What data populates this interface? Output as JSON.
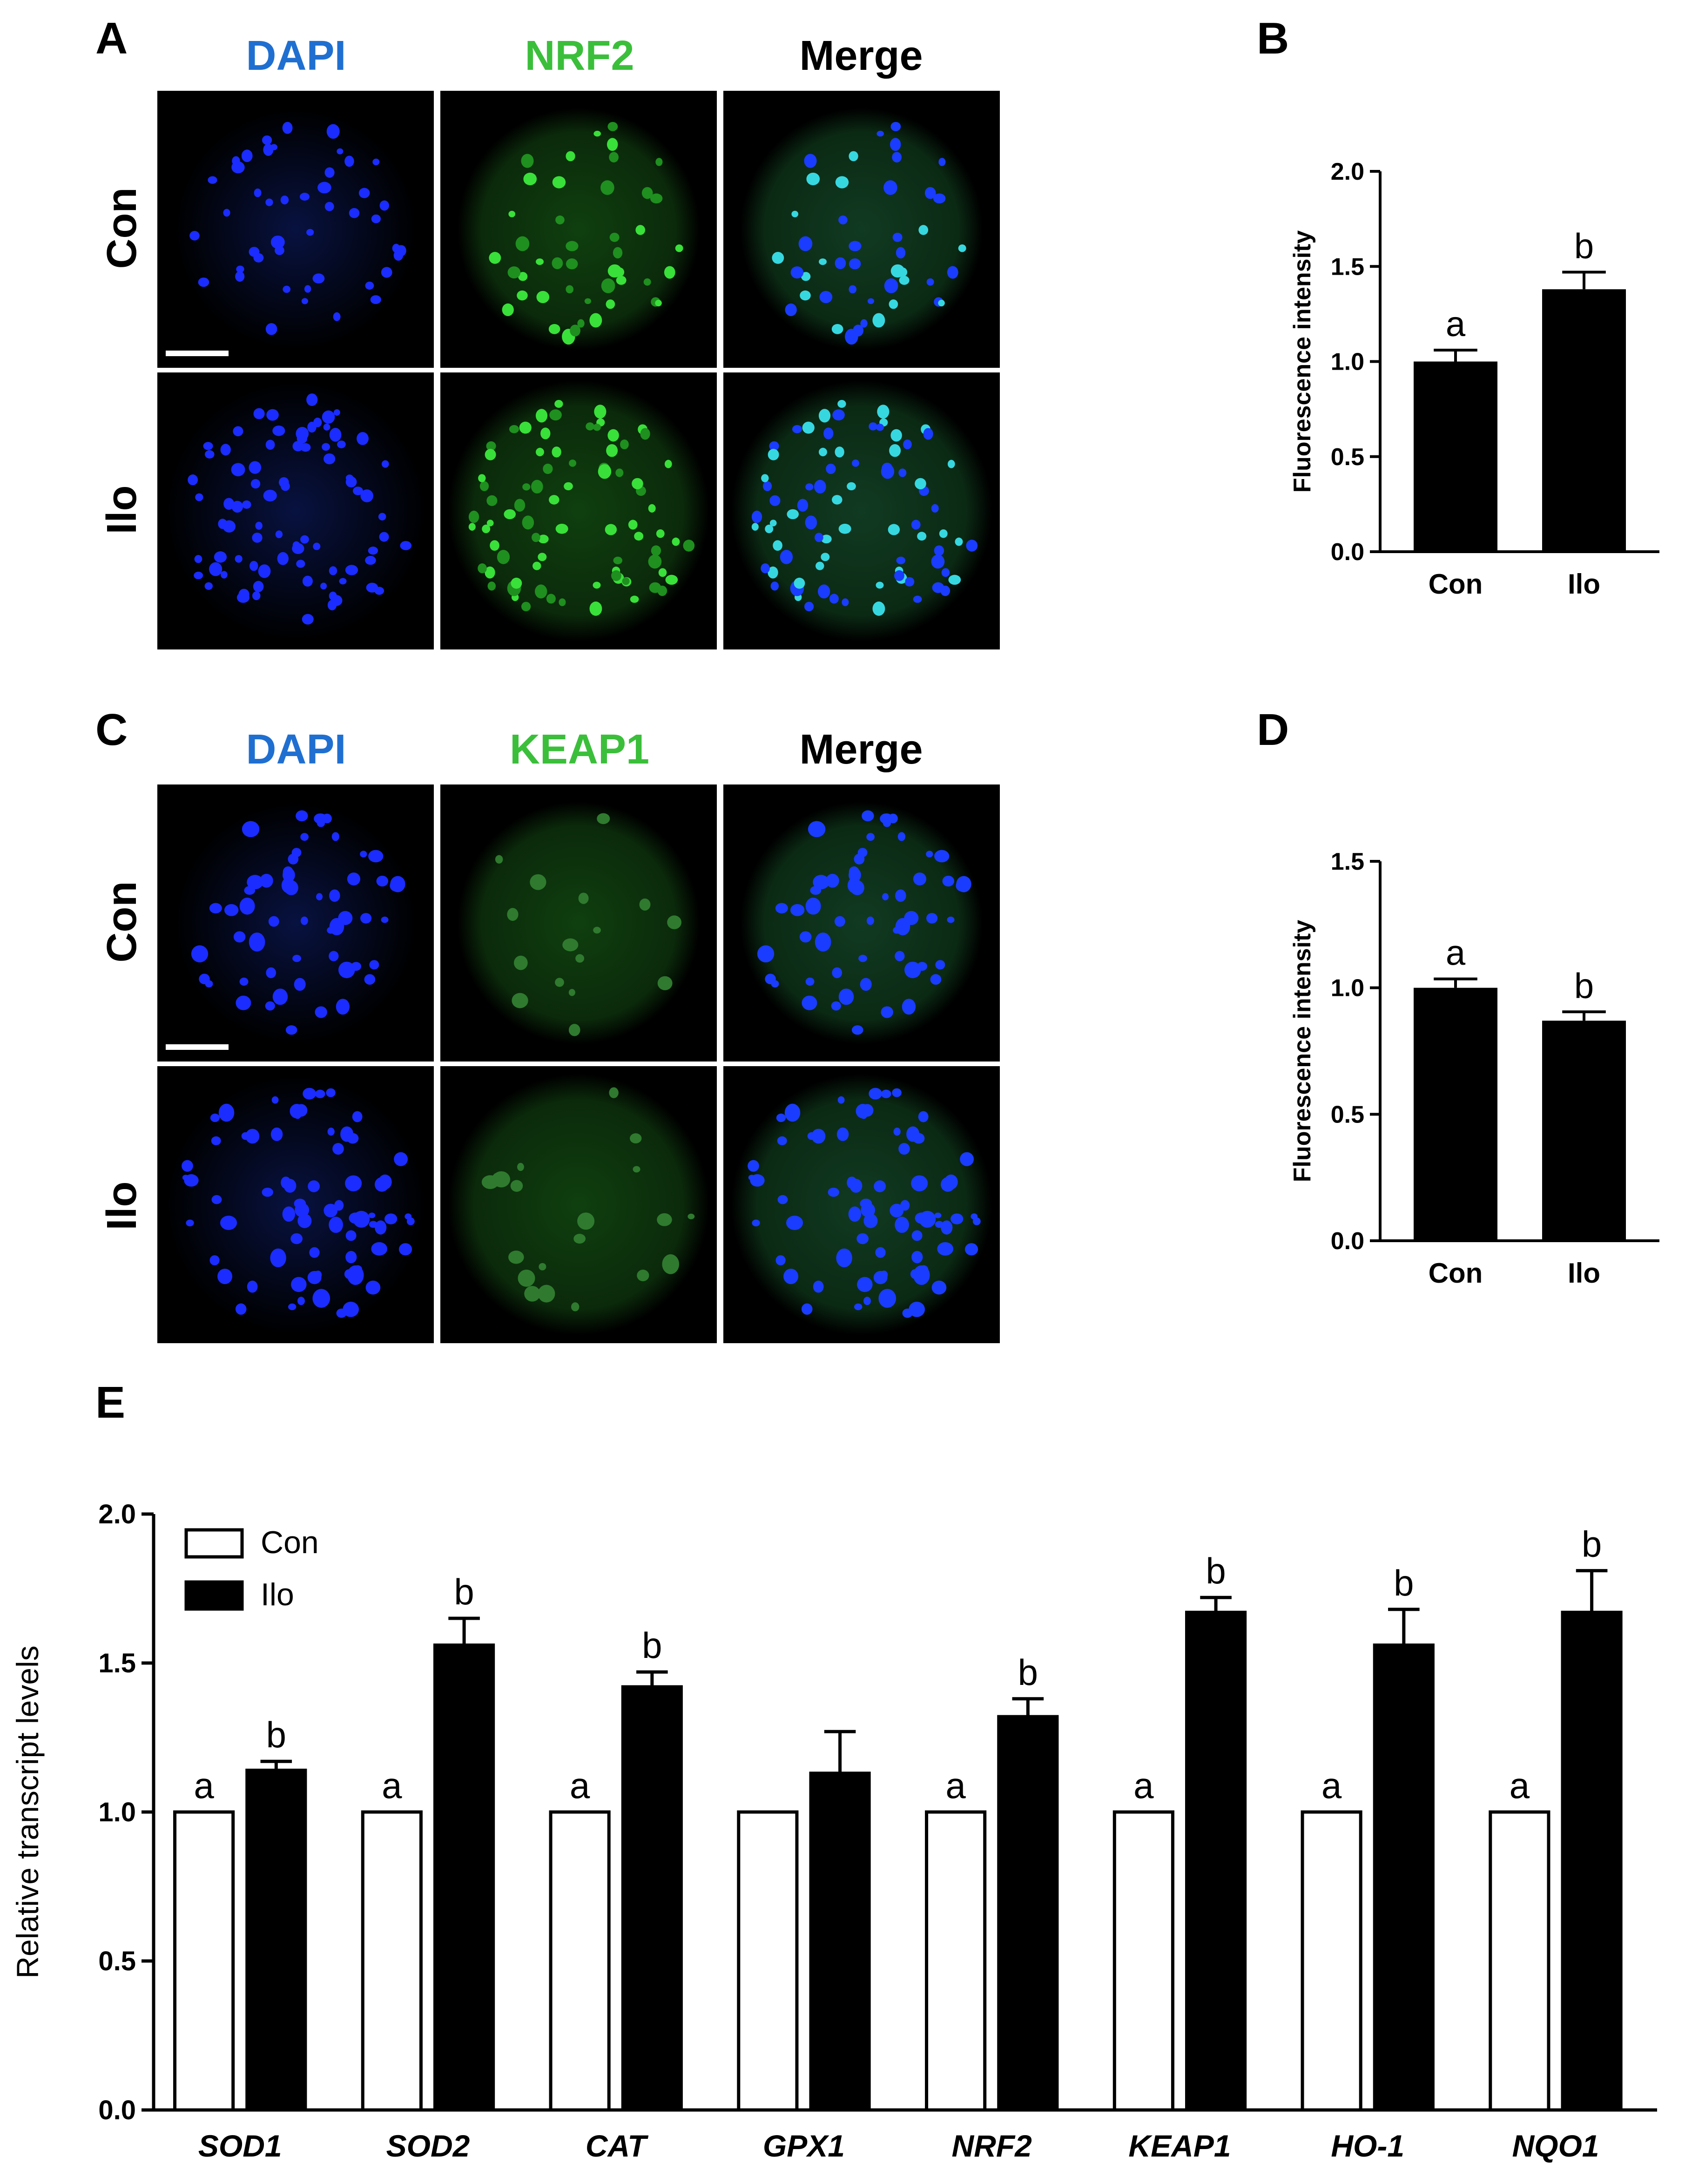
{
  "panels": {
    "A": {
      "letter": "A",
      "columns": [
        "DAPI",
        "NRF2",
        "Merge"
      ],
      "column_colors": [
        "#1f6fd1",
        "#3bbf3b",
        "#000000"
      ],
      "rows": [
        "Con",
        "Ilo"
      ]
    },
    "C": {
      "letter": "C",
      "columns": [
        "DAPI",
        "KEAP1",
        "Merge"
      ],
      "column_colors": [
        "#1f6fd1",
        "#3bbf3b",
        "#000000"
      ],
      "rows": [
        "Con",
        "Ilo"
      ]
    },
    "B": {
      "letter": "B"
    },
    "D": {
      "letter": "D"
    },
    "E": {
      "letter": "E"
    }
  },
  "chart_data": [
    {
      "id": "B",
      "type": "bar",
      "categories": [
        "Con",
        "Ilo"
      ],
      "values": [
        1.0,
        1.38
      ],
      "errors": [
        0.06,
        0.09
      ],
      "sig_labels": [
        "a",
        "b"
      ],
      "ylabel": "Fluorescence intensity",
      "ylim": [
        0,
        2.0
      ],
      "yticks": [
        0.0,
        0.5,
        1.0,
        1.5,
        2.0
      ],
      "ytick_labels": [
        "0.0",
        "0.5",
        "1.0",
        "1.5",
        "2.0"
      ],
      "bar_color": "#000000"
    },
    {
      "id": "D",
      "type": "bar",
      "categories": [
        "Con",
        "Ilo"
      ],
      "values": [
        1.0,
        0.87
      ],
      "errors": [
        0.035,
        0.035
      ],
      "sig_labels": [
        "a",
        "b"
      ],
      "ylabel": "Fluorescence intensity",
      "ylim": [
        0,
        1.5
      ],
      "yticks": [
        0.0,
        0.5,
        1.0,
        1.5
      ],
      "ytick_labels": [
        "0.0",
        "0.5",
        "1.0",
        "1.5"
      ],
      "bar_color": "#000000"
    },
    {
      "id": "E",
      "type": "bar",
      "categories": [
        "SOD1",
        "SOD2",
        "CAT",
        "GPX1",
        "NRF2",
        "KEAP1",
        "HO-1",
        "NQO1"
      ],
      "series": [
        {
          "name": "Con",
          "values": [
            1.0,
            1.0,
            1.0,
            1.0,
            1.0,
            1.0,
            1.0,
            1.0
          ],
          "errors": [
            0,
            0,
            0,
            0,
            0,
            0,
            0,
            0
          ],
          "sig_labels": [
            "a",
            "a",
            "a",
            "",
            "a",
            "a",
            "a",
            "a"
          ],
          "fill": "#ffffff",
          "stroke": "#000000"
        },
        {
          "name": "Ilo",
          "values": [
            1.14,
            1.56,
            1.42,
            1.13,
            1.32,
            1.67,
            1.56,
            1.67
          ],
          "errors": [
            0.03,
            0.09,
            0.05,
            0.14,
            0.06,
            0.05,
            0.12,
            0.14
          ],
          "sig_labels": [
            "b",
            "b",
            "b",
            "",
            "b",
            "b",
            "b",
            "b"
          ],
          "fill": "#000000",
          "stroke": "#000000"
        }
      ],
      "ylabel": "Relative transcript levels",
      "ylim": [
        0,
        2.0
      ],
      "yticks": [
        0.0,
        0.5,
        1.0,
        1.5,
        2.0
      ],
      "ytick_labels": [
        "0.0",
        "0.5",
        "1.0",
        "1.5",
        "2.0"
      ],
      "legend_position": "top-left"
    }
  ]
}
